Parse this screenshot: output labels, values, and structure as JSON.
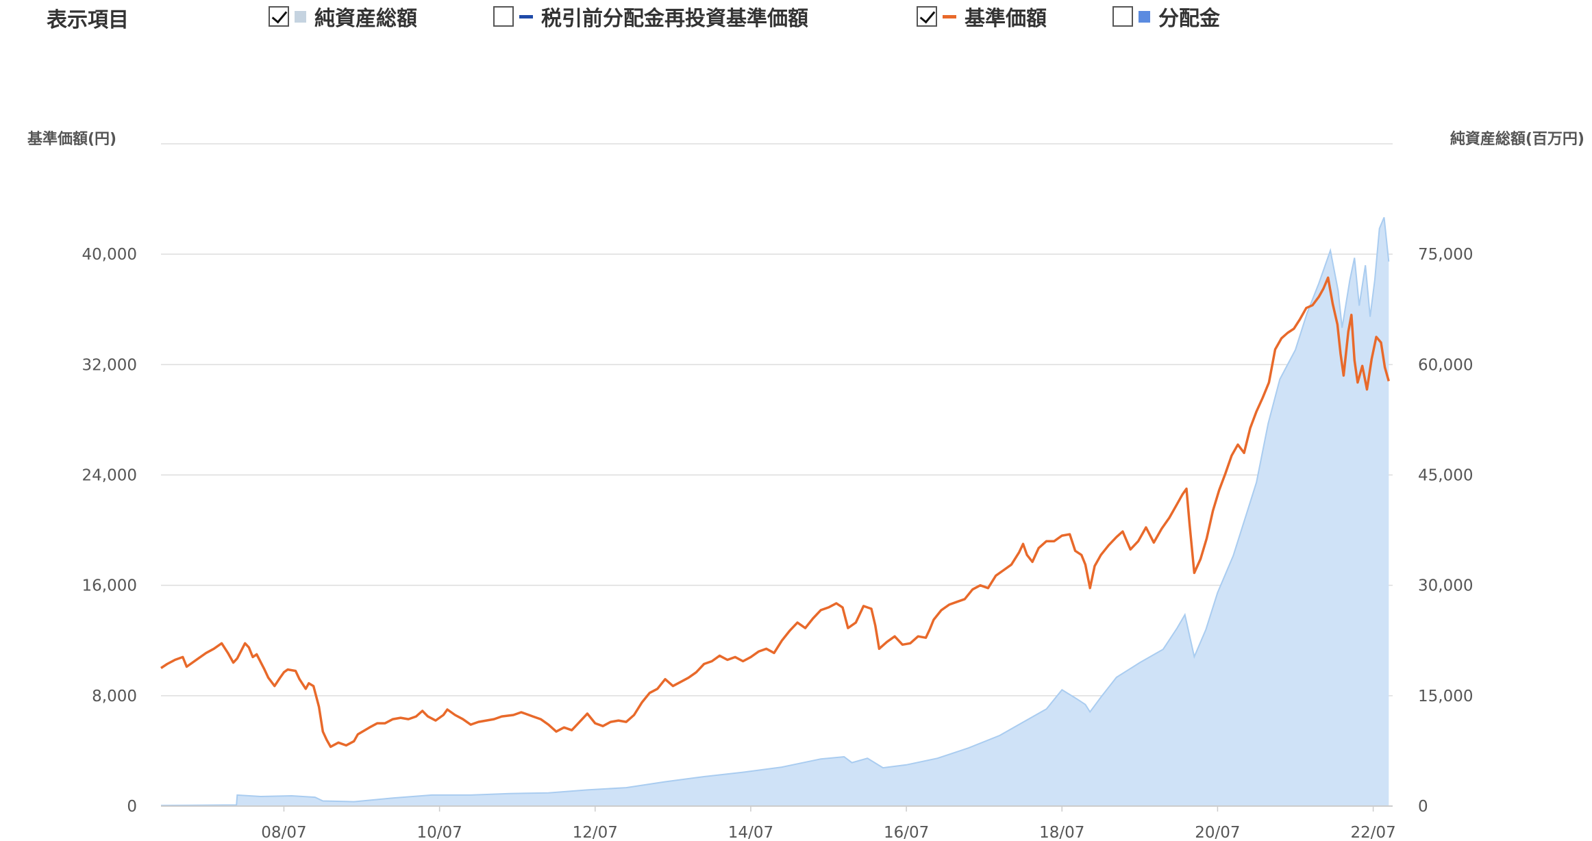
{
  "legend": {
    "title": "表示項目",
    "items": [
      {
        "label": "純資産総額",
        "checked": true,
        "color": "#c5d3e0",
        "swatch": "square"
      },
      {
        "label": "税引前分配金再投資基準価額",
        "checked": false,
        "color": "#1f4aa8",
        "swatch": "line"
      },
      {
        "label": "基準価額",
        "checked": true,
        "color": "#e8692a",
        "swatch": "line"
      },
      {
        "label": "分配金",
        "checked": false,
        "color": "#5b8be0",
        "swatch": "square"
      }
    ]
  },
  "chart_data": {
    "type": "line",
    "y_left_label": "基準価額(円)",
    "y_right_label": "純資産総額(百万円)",
    "y_left_ticks": [
      "0",
      "8,000",
      "16,000",
      "24,000",
      "32,000",
      "40,000"
    ],
    "y_right_ticks": [
      "0",
      "15,000",
      "30,000",
      "45,000",
      "60,000",
      "75,000"
    ],
    "y_left_range": [
      0,
      48000
    ],
    "y_right_range": [
      0,
      90000
    ],
    "x_tick_labels": [
      "08/07",
      "10/07",
      "12/07",
      "14/07",
      "16/07",
      "18/07",
      "20/07",
      "22/07"
    ],
    "x_tick_dates": [
      2008.5,
      2010.5,
      2012.5,
      2014.5,
      2016.5,
      2018.5,
      2020.5,
      2022.5
    ],
    "x_range": [
      2006.92,
      2022.75
    ],
    "grid": true,
    "colors": {
      "area": "#cfe2f7",
      "area_edge": "#a9ccf0",
      "line": "#e8692a",
      "grid": "#dddddd"
    },
    "series": [
      {
        "name": "基準価額",
        "axis": "left",
        "points": [
          [
            2006.92,
            10000
          ],
          [
            2007.0,
            10300
          ],
          [
            2007.1,
            10600
          ],
          [
            2007.2,
            10800
          ],
          [
            2007.25,
            10100
          ],
          [
            2007.4,
            10700
          ],
          [
            2007.5,
            11100
          ],
          [
            2007.6,
            11400
          ],
          [
            2007.7,
            11800
          ],
          [
            2007.78,
            11100
          ],
          [
            2007.85,
            10400
          ],
          [
            2007.9,
            10700
          ],
          [
            2008.0,
            11800
          ],
          [
            2008.05,
            11500
          ],
          [
            2008.1,
            10800
          ],
          [
            2008.15,
            11000
          ],
          [
            2008.25,
            9900
          ],
          [
            2008.3,
            9300
          ],
          [
            2008.38,
            8700
          ],
          [
            2008.45,
            9300
          ],
          [
            2008.5,
            9700
          ],
          [
            2008.55,
            9900
          ],
          [
            2008.65,
            9800
          ],
          [
            2008.7,
            9200
          ],
          [
            2008.78,
            8500
          ],
          [
            2008.82,
            8900
          ],
          [
            2008.88,
            8700
          ],
          [
            2008.95,
            7200
          ],
          [
            2009.0,
            5400
          ],
          [
            2009.05,
            4800
          ],
          [
            2009.1,
            4300
          ],
          [
            2009.2,
            4600
          ],
          [
            2009.3,
            4400
          ],
          [
            2009.4,
            4700
          ],
          [
            2009.45,
            5200
          ],
          [
            2009.6,
            5700
          ],
          [
            2009.7,
            6000
          ],
          [
            2009.8,
            6000
          ],
          [
            2009.9,
            6300
          ],
          [
            2010.0,
            6400
          ],
          [
            2010.1,
            6300
          ],
          [
            2010.2,
            6500
          ],
          [
            2010.28,
            6900
          ],
          [
            2010.35,
            6500
          ],
          [
            2010.45,
            6200
          ],
          [
            2010.55,
            6600
          ],
          [
            2010.6,
            7000
          ],
          [
            2010.7,
            6600
          ],
          [
            2010.8,
            6300
          ],
          [
            2010.9,
            5900
          ],
          [
            2011.0,
            6100
          ],
          [
            2011.1,
            6200
          ],
          [
            2011.2,
            6300
          ],
          [
            2011.3,
            6500
          ],
          [
            2011.45,
            6600
          ],
          [
            2011.55,
            6800
          ],
          [
            2011.6,
            6700
          ],
          [
            2011.7,
            6500
          ],
          [
            2011.8,
            6300
          ],
          [
            2011.9,
            5900
          ],
          [
            2012.0,
            5400
          ],
          [
            2012.1,
            5700
          ],
          [
            2012.2,
            5500
          ],
          [
            2012.3,
            6100
          ],
          [
            2012.4,
            6700
          ],
          [
            2012.5,
            6000
          ],
          [
            2012.6,
            5800
          ],
          [
            2012.7,
            6100
          ],
          [
            2012.8,
            6200
          ],
          [
            2012.9,
            6100
          ],
          [
            2013.0,
            6600
          ],
          [
            2013.1,
            7500
          ],
          [
            2013.2,
            8200
          ],
          [
            2013.3,
            8500
          ],
          [
            2013.4,
            9200
          ],
          [
            2013.5,
            8700
          ],
          [
            2013.6,
            9000
          ],
          [
            2013.7,
            9300
          ],
          [
            2013.8,
            9700
          ],
          [
            2013.9,
            10300
          ],
          [
            2014.0,
            10500
          ],
          [
            2014.1,
            10900
          ],
          [
            2014.2,
            10600
          ],
          [
            2014.3,
            10800
          ],
          [
            2014.4,
            10500
          ],
          [
            2014.5,
            10800
          ],
          [
            2014.6,
            11200
          ],
          [
            2014.7,
            11400
          ],
          [
            2014.8,
            11100
          ],
          [
            2014.9,
            12000
          ],
          [
            2015.0,
            12700
          ],
          [
            2015.1,
            13300
          ],
          [
            2015.2,
            12900
          ],
          [
            2015.3,
            13600
          ],
          [
            2015.4,
            14200
          ],
          [
            2015.5,
            14400
          ],
          [
            2015.6,
            14700
          ],
          [
            2015.68,
            14400
          ],
          [
            2015.75,
            12900
          ],
          [
            2015.85,
            13300
          ],
          [
            2015.95,
            14500
          ],
          [
            2016.05,
            14300
          ],
          [
            2016.1,
            13100
          ],
          [
            2016.15,
            11400
          ],
          [
            2016.25,
            11900
          ],
          [
            2016.35,
            12300
          ],
          [
            2016.45,
            11700
          ],
          [
            2016.55,
            11800
          ],
          [
            2016.65,
            12300
          ],
          [
            2016.75,
            12200
          ],
          [
            2016.8,
            12800
          ],
          [
            2016.85,
            13500
          ],
          [
            2016.95,
            14200
          ],
          [
            2017.05,
            14600
          ],
          [
            2017.15,
            14800
          ],
          [
            2017.25,
            15000
          ],
          [
            2017.35,
            15700
          ],
          [
            2017.45,
            16000
          ],
          [
            2017.55,
            15800
          ],
          [
            2017.65,
            16700
          ],
          [
            2017.75,
            17100
          ],
          [
            2017.85,
            17500
          ],
          [
            2017.95,
            18400
          ],
          [
            2018.0,
            19000
          ],
          [
            2018.05,
            18200
          ],
          [
            2018.12,
            17700
          ],
          [
            2018.2,
            18700
          ],
          [
            2018.3,
            19200
          ],
          [
            2018.4,
            19200
          ],
          [
            2018.5,
            19600
          ],
          [
            2018.6,
            19700
          ],
          [
            2018.67,
            18500
          ],
          [
            2018.75,
            18200
          ],
          [
            2018.8,
            17500
          ],
          [
            2018.86,
            15800
          ],
          [
            2018.92,
            17400
          ],
          [
            2019.0,
            18200
          ],
          [
            2019.1,
            18900
          ],
          [
            2019.2,
            19500
          ],
          [
            2019.28,
            19900
          ],
          [
            2019.38,
            18600
          ],
          [
            2019.48,
            19200
          ],
          [
            2019.58,
            20200
          ],
          [
            2019.68,
            19100
          ],
          [
            2019.78,
            20100
          ],
          [
            2019.88,
            20900
          ],
          [
            2019.98,
            21900
          ],
          [
            2020.05,
            22600
          ],
          [
            2020.1,
            23000
          ],
          [
            2020.14,
            20400
          ],
          [
            2020.2,
            16900
          ],
          [
            2020.28,
            17900
          ],
          [
            2020.36,
            19400
          ],
          [
            2020.44,
            21400
          ],
          [
            2020.52,
            22900
          ],
          [
            2020.6,
            24100
          ],
          [
            2020.68,
            25400
          ],
          [
            2020.76,
            26200
          ],
          [
            2020.84,
            25600
          ],
          [
            2020.92,
            27400
          ],
          [
            2021.0,
            28600
          ],
          [
            2021.08,
            29600
          ],
          [
            2021.16,
            30700
          ],
          [
            2021.24,
            33100
          ],
          [
            2021.32,
            33900
          ],
          [
            2021.4,
            34300
          ],
          [
            2021.48,
            34600
          ],
          [
            2021.56,
            35300
          ],
          [
            2021.64,
            36100
          ],
          [
            2021.72,
            36300
          ],
          [
            2021.8,
            36900
          ],
          [
            2021.86,
            37500
          ],
          [
            2021.92,
            38300
          ],
          [
            2021.98,
            36400
          ],
          [
            2022.04,
            34900
          ],
          [
            2022.08,
            32800
          ],
          [
            2022.12,
            31200
          ],
          [
            2022.18,
            34400
          ],
          [
            2022.22,
            35600
          ],
          [
            2022.26,
            32300
          ],
          [
            2022.3,
            30700
          ],
          [
            2022.36,
            31900
          ],
          [
            2022.42,
            30200
          ],
          [
            2022.48,
            32400
          ],
          [
            2022.54,
            34000
          ],
          [
            2022.6,
            33600
          ],
          [
            2022.65,
            31800
          ],
          [
            2022.7,
            30800
          ]
        ]
      },
      {
        "name": "純資産総額",
        "axis": "right",
        "points": [
          [
            2006.92,
            80
          ],
          [
            2007.3,
            100
          ],
          [
            2007.89,
            150
          ],
          [
            2007.9,
            1500
          ],
          [
            2008.2,
            1300
          ],
          [
            2008.6,
            1400
          ],
          [
            2008.9,
            1200
          ],
          [
            2009.0,
            700
          ],
          [
            2009.4,
            600
          ],
          [
            2009.9,
            1100
          ],
          [
            2010.4,
            1500
          ],
          [
            2010.9,
            1500
          ],
          [
            2011.4,
            1700
          ],
          [
            2011.9,
            1800
          ],
          [
            2012.4,
            2200
          ],
          [
            2012.9,
            2500
          ],
          [
            2013.4,
            3300
          ],
          [
            2013.9,
            4000
          ],
          [
            2014.4,
            4600
          ],
          [
            2014.9,
            5300
          ],
          [
            2015.4,
            6400
          ],
          [
            2015.7,
            6700
          ],
          [
            2015.8,
            5900
          ],
          [
            2016.0,
            6500
          ],
          [
            2016.2,
            5200
          ],
          [
            2016.5,
            5600
          ],
          [
            2016.9,
            6500
          ],
          [
            2017.3,
            7900
          ],
          [
            2017.7,
            9600
          ],
          [
            2018.0,
            11400
          ],
          [
            2018.3,
            13200
          ],
          [
            2018.5,
            15800
          ],
          [
            2018.7,
            14500
          ],
          [
            2018.8,
            13800
          ],
          [
            2018.86,
            12800
          ],
          [
            2019.0,
            14800
          ],
          [
            2019.2,
            17500
          ],
          [
            2019.5,
            19500
          ],
          [
            2019.8,
            21300
          ],
          [
            2019.98,
            24200
          ],
          [
            2020.08,
            26000
          ],
          [
            2020.2,
            20300
          ],
          [
            2020.35,
            24000
          ],
          [
            2020.5,
            29000
          ],
          [
            2020.7,
            34000
          ],
          [
            2020.85,
            39000
          ],
          [
            2021.0,
            44000
          ],
          [
            2021.15,
            52000
          ],
          [
            2021.3,
            58000
          ],
          [
            2021.5,
            62000
          ],
          [
            2021.65,
            67000
          ],
          [
            2021.8,
            71000
          ],
          [
            2021.95,
            75500
          ],
          [
            2022.05,
            70000
          ],
          [
            2022.1,
            65000
          ],
          [
            2022.2,
            71500
          ],
          [
            2022.26,
            74500
          ],
          [
            2022.32,
            68000
          ],
          [
            2022.4,
            73500
          ],
          [
            2022.46,
            66500
          ],
          [
            2022.52,
            71500
          ],
          [
            2022.58,
            78500
          ],
          [
            2022.64,
            80000
          ],
          [
            2022.7,
            74000
          ]
        ]
      }
    ]
  }
}
